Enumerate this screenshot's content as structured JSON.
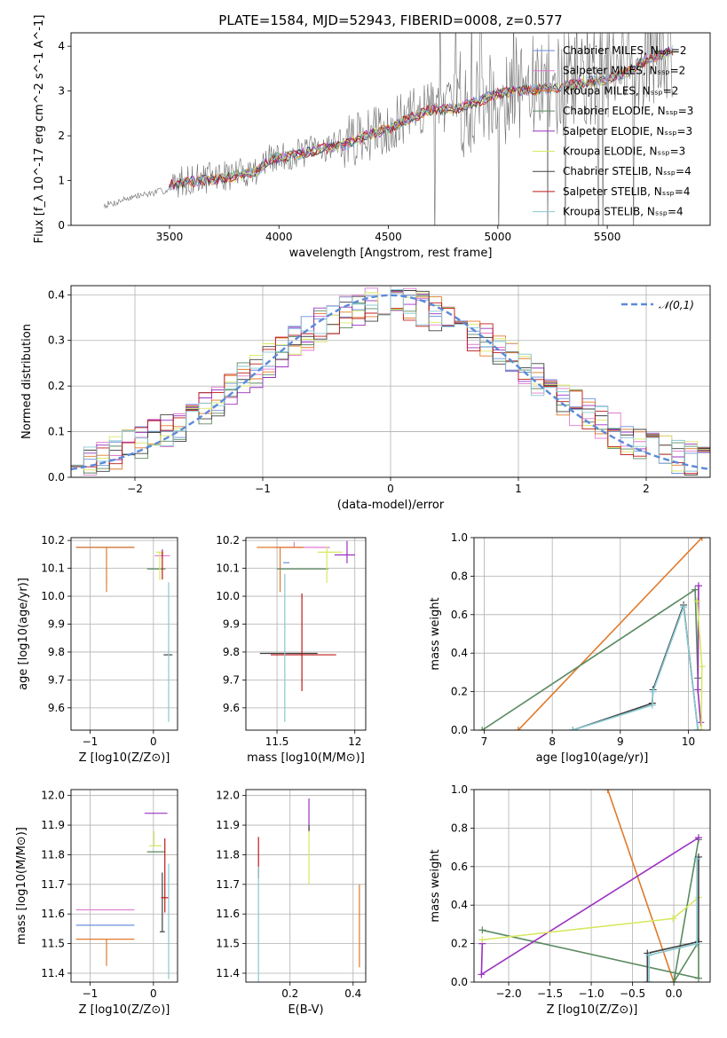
{
  "figure": {
    "title": "PLATE=1584, MJD=52943, FIBERID=0008, z=0.577"
  },
  "series_styles": [
    {
      "name": "Chabrier MILES, N_SSP=2",
      "color": "#6a8fd8"
    },
    {
      "name": "Salpeter MILES, N_SSP=2",
      "color": "#e07ad0"
    },
    {
      "name": "Kroupa MILES, N_SSP=2",
      "color": "#e07a2a"
    },
    {
      "name": "Chabrier ELODIE, N_SSP=3",
      "color": "#5a8a60"
    },
    {
      "name": "Salpeter ELODIE, N_SSP=3",
      "color": "#9b30c0"
    },
    {
      "name": "Kroupa ELODIE, N_SSP=3",
      "color": "#d8e860"
    },
    {
      "name": "Chabrier STELIB, N_SSP=4",
      "color": "#404040"
    },
    {
      "name": "Salpeter STELIB, N_SSP=4",
      "color": "#c01818"
    },
    {
      "name": "Kroupa STELIB, N_SSP=4",
      "color": "#88c8d0"
    }
  ],
  "chart_data": [
    {
      "id": "spectrum",
      "type": "line",
      "xlabel": "wavelength [Angstrom, rest frame]",
      "ylabel": "Flux [f_λ 10^-17 erg cm^-2 s^-1 A^-1]",
      "xlim": [
        3050,
        5970
      ],
      "ylim": [
        0,
        4.3
      ],
      "xticks": [
        3500,
        4000,
        4500,
        5000,
        5500
      ],
      "yticks": [
        0,
        1,
        2,
        3,
        4
      ],
      "legend_position": "top-right",
      "continuum_x": [
        3200,
        3250,
        3300,
        3400,
        3500,
        3550,
        3650,
        3750,
        3900,
        3950,
        4000,
        4100,
        4200,
        4300,
        4400,
        4500,
        4600,
        4700,
        4800,
        4900,
        5000,
        5100,
        5200,
        5300,
        5400,
        5500,
        5600,
        5700,
        5800
      ],
      "continuum_y": [
        0.45,
        0.5,
        0.6,
        0.7,
        0.8,
        1.0,
        1.05,
        1.1,
        1.25,
        1.45,
        1.5,
        1.6,
        1.75,
        1.85,
        2.0,
        2.2,
        2.45,
        2.7,
        2.65,
        2.8,
        2.95,
        3.05,
        3.05,
        3.15,
        3.3,
        3.3,
        3.5,
        3.85,
        3.95
      ],
      "model_x": [
        3500,
        3550,
        3650,
        3750,
        3900,
        3950,
        4000,
        4100,
        4200,
        4300,
        4400,
        4500,
        4600,
        4700,
        4800,
        4900,
        5000,
        5100,
        5200,
        5300,
        5400,
        5500,
        5600,
        5700,
        5800
      ],
      "model_y": [
        0.9,
        0.95,
        1.0,
        1.05,
        1.2,
        1.45,
        1.5,
        1.6,
        1.7,
        1.8,
        2.0,
        2.15,
        2.4,
        2.6,
        2.6,
        2.75,
        2.95,
        3.0,
        3.05,
        3.1,
        3.2,
        3.25,
        3.45,
        3.75,
        3.9
      ]
    },
    {
      "id": "residuals",
      "type": "step",
      "xlabel": "(data-model)/error",
      "ylabel": "Normed distribution",
      "xlim": [
        -2.5,
        2.5
      ],
      "ylim": [
        0,
        0.42
      ],
      "xticks": [
        -2,
        -1,
        0,
        1,
        2
      ],
      "yticks": [
        0.0,
        0.1,
        0.2,
        0.3,
        0.4
      ],
      "legend": "𝒩(0,1)",
      "legend_position": "top-right",
      "gaussian_color": "#5b8ad8"
    },
    {
      "id": "age_vs_Z",
      "type": "errorbar",
      "xlabel": "Z [log10(Z/Z⊙)]",
      "ylabel": "age  [log10(age/yr)]",
      "xlim": [
        -1.3,
        0.38
      ],
      "ylim": [
        9.52,
        10.21
      ],
      "xticks": [
        -1,
        0
      ],
      "yticks": [
        9.6,
        9.7,
        9.8,
        9.9,
        10.0,
        10.1,
        10.2
      ],
      "points": [
        {
          "s": 0,
          "x": -0.74,
          "y": 10.175,
          "xerr": [
            0.48,
            0.44
          ],
          "yerr": [
            0.0,
            0.0
          ]
        },
        {
          "s": 1,
          "x": 0.14,
          "y": 10.145,
          "xerr": [
            0.12,
            0.12
          ],
          "yerr": [
            0.01,
            0.02
          ]
        },
        {
          "s": 2,
          "x": -0.74,
          "y": 10.175,
          "xerr": [
            0.48,
            0.44
          ],
          "yerr": [
            0.16,
            0.0
          ]
        },
        {
          "s": 3,
          "x": 0.04,
          "y": 10.098,
          "xerr": [
            0.14,
            0.15
          ],
          "yerr": [
            0.0,
            0.0
          ]
        },
        {
          "s": 4,
          "x": 0.14,
          "y": 10.148,
          "xerr": [
            0.0,
            0.0
          ],
          "yerr": [
            0.0,
            0.02
          ]
        },
        {
          "s": 5,
          "x": 0.1,
          "y": 10.158,
          "xerr": [
            0.06,
            0.06
          ],
          "yerr": [
            0.1,
            0.0
          ]
        },
        {
          "s": 6,
          "x": 0.18,
          "y": 9.79,
          "xerr": [
            0.02,
            0.12
          ],
          "yerr": [
            0.0,
            0.0
          ]
        },
        {
          "s": 7,
          "x": 0.14,
          "y": 10.11,
          "xerr": [
            0.0,
            0.0
          ],
          "yerr": [
            0.05,
            0.05
          ]
        },
        {
          "s": 8,
          "x": 0.24,
          "y": 9.8,
          "xerr": [
            0.0,
            0.0
          ],
          "yerr": [
            0.25,
            0.25
          ]
        }
      ]
    },
    {
      "id": "age_vs_mass",
      "type": "errorbar",
      "xlabel": "mass [log10(M/M⊙)]",
      "ylabel": "",
      "xlim": [
        11.3,
        12.07
      ],
      "ylim": [
        9.52,
        10.21
      ],
      "xticks": [
        11.5,
        12.0
      ],
      "yticks": [
        9.6,
        9.7,
        9.8,
        9.9,
        10.0,
        10.1,
        10.2
      ],
      "points": [
        {
          "s": 0,
          "x": 11.56,
          "y": 10.12,
          "xerr": [
            0.02,
            0.02
          ],
          "yerr": [
            0.0,
            0.0
          ]
        },
        {
          "s": 1,
          "x": 11.61,
          "y": 10.175,
          "xerr": [
            0.12,
            0.23
          ],
          "yerr": [
            0.0,
            0.02
          ]
        },
        {
          "s": 2,
          "x": 11.52,
          "y": 10.175,
          "xerr": [
            0.15,
            0.15
          ],
          "yerr": [
            0.16,
            0.0
          ]
        },
        {
          "s": 3,
          "x": 11.65,
          "y": 10.098,
          "xerr": [
            0.15,
            0.18
          ],
          "yerr": [
            0.0,
            0.0
          ]
        },
        {
          "s": 4,
          "x": 11.95,
          "y": 10.148,
          "xerr": [
            0.08,
            0.05
          ],
          "yerr": [
            0.03,
            0.05
          ]
        },
        {
          "s": 5,
          "x": 11.82,
          "y": 10.158,
          "xerr": [
            0.06,
            0.1
          ],
          "yerr": [
            0.11,
            0.02
          ]
        },
        {
          "s": 6,
          "x": 11.56,
          "y": 9.795,
          "xerr": [
            0.17,
            0.2
          ],
          "yerr": [
            0.0,
            0.0
          ]
        },
        {
          "s": 7,
          "x": 11.66,
          "y": 9.79,
          "xerr": [
            0.2,
            0.22
          ],
          "yerr": [
            0.13,
            0.22
          ]
        },
        {
          "s": 8,
          "x": 11.55,
          "y": 9.8,
          "xerr": [
            0.0,
            0.0
          ],
          "yerr": [
            0.25,
            0.28
          ]
        }
      ]
    },
    {
      "id": "weight_vs_age",
      "type": "line",
      "xlabel": "age  [log10(age/yr)]",
      "ylabel": "mass weight",
      "xlim": [
        6.85,
        10.32
      ],
      "ylim": [
        0,
        1.0
      ],
      "xticks": [
        7,
        8,
        9,
        10
      ],
      "yticks": [
        0.0,
        0.2,
        0.4,
        0.6,
        0.8,
        1.0
      ],
      "series": [
        {
          "s": 2,
          "x": [
            7.5,
            10.2
          ],
          "y": [
            0.0,
            1.0
          ]
        },
        {
          "s": 3,
          "x": [
            6.97,
            10.1,
            10.14
          ],
          "y": [
            0.0,
            0.73,
            0.27
          ]
        },
        {
          "s": 4,
          "x": [
            10.15,
            10.14,
            10.18
          ],
          "y": [
            0.75,
            0.21,
            0.04
          ]
        },
        {
          "s": 5,
          "x": [
            10.13,
            10.2,
            10.19
          ],
          "y": [
            0.67,
            0.33,
            0.0
          ]
        },
        {
          "s": 6,
          "x": [
            8.3,
            9.47,
            9.48,
            9.93,
            10.14
          ],
          "y": [
            0.0,
            0.14,
            0.21,
            0.65,
            0.0
          ]
        },
        {
          "s": 8,
          "x": [
            8.3,
            9.47,
            9.48,
            9.93,
            10.14
          ],
          "y": [
            0.0,
            0.13,
            0.2,
            0.64,
            0.0
          ]
        }
      ]
    },
    {
      "id": "mass_vs_Z",
      "type": "errorbar",
      "xlabel": "Z [log10(Z/Z⊙)]",
      "ylabel": "mass [log10(M/M⊙)]",
      "xlim": [
        -1.3,
        0.38
      ],
      "ylim": [
        11.37,
        12.02
      ],
      "xticks": [
        -1,
        0
      ],
      "yticks": [
        11.4,
        11.5,
        11.6,
        11.7,
        11.8,
        11.9,
        12.0
      ],
      "points": [
        {
          "s": 0,
          "x": -0.74,
          "y": 11.562,
          "xerr": [
            0.48,
            0.44
          ],
          "yerr": [
            0.0,
            0.0
          ]
        },
        {
          "s": 1,
          "x": -0.74,
          "y": 11.614,
          "xerr": [
            0.48,
            0.44
          ],
          "yerr": [
            0.0,
            0.0
          ]
        },
        {
          "s": 2,
          "x": -0.74,
          "y": 11.515,
          "xerr": [
            0.48,
            0.44
          ],
          "yerr": [
            0.09,
            0.0
          ]
        },
        {
          "s": 3,
          "x": 0.04,
          "y": 11.81,
          "xerr": [
            0.14,
            0.15
          ],
          "yerr": [
            0.0,
            0.0
          ]
        },
        {
          "s": 4,
          "x": 0.02,
          "y": 11.94,
          "xerr": [
            0.16,
            0.2
          ],
          "yerr": [
            0.0,
            0.0
          ]
        },
        {
          "s": 5,
          "x": 0.01,
          "y": 11.83,
          "xerr": [
            0.08,
            0.12
          ],
          "yerr": [
            0.0,
            0.05
          ]
        },
        {
          "s": 6,
          "x": 0.14,
          "y": 11.54,
          "xerr": [
            0.04,
            0.04
          ],
          "yerr": [
            0.0,
            0.2
          ]
        },
        {
          "s": 7,
          "x": 0.18,
          "y": 11.655,
          "xerr": [
            0.06,
            0.06
          ],
          "yerr": [
            0.05,
            0.2
          ]
        },
        {
          "s": 8,
          "x": 0.24,
          "y": 11.57,
          "xerr": [
            0.0,
            0.0
          ],
          "yerr": [
            0.19,
            0.2
          ]
        }
      ]
    },
    {
      "id": "mass_vs_ebv",
      "type": "errorbar",
      "xlabel": "E(B-V)",
      "ylabel": "",
      "xlim": [
        0.06,
        0.44
      ],
      "ylim": [
        11.37,
        12.02
      ],
      "xticks": [
        0.2,
        0.4
      ],
      "yticks": [
        11.4,
        11.5,
        11.6,
        11.7,
        11.8,
        11.9,
        12.0
      ],
      "points": [
        {
          "s": 0,
          "x": 0.1,
          "y": 11.56,
          "xerr": [
            0.0,
            0.0
          ],
          "yerr": [
            0.0,
            0.0
          ]
        },
        {
          "s": 1,
          "x": 0.1,
          "y": 11.6,
          "xerr": [
            0.0,
            0.0
          ],
          "yerr": [
            0.0,
            0.0
          ]
        },
        {
          "s": 2,
          "x": 0.42,
          "y": 11.55,
          "xerr": [
            0.0,
            0.0
          ],
          "yerr": [
            0.13,
            0.15
          ]
        },
        {
          "s": 3,
          "x": 0.26,
          "y": 11.81,
          "xerr": [
            0.0,
            0.0
          ],
          "yerr": [
            0.0,
            0.0
          ]
        },
        {
          "s": 4,
          "x": 0.26,
          "y": 11.9,
          "xerr": [
            0.0,
            0.0
          ],
          "yerr": [
            0.02,
            0.09
          ]
        },
        {
          "s": 5,
          "x": 0.26,
          "y": 11.82,
          "xerr": [
            0.0,
            0.0
          ],
          "yerr": [
            0.12,
            0.06
          ]
        },
        {
          "s": 6,
          "x": 0.26,
          "y": 11.88,
          "xerr": [
            0.0,
            0.0
          ],
          "yerr": [
            0.0,
            0.02
          ]
        },
        {
          "s": 7,
          "x": 0.1,
          "y": 11.75,
          "xerr": [
            0.0,
            0.0
          ],
          "yerr": [
            0.03,
            0.11
          ]
        },
        {
          "s": 8,
          "x": 0.1,
          "y": 11.56,
          "xerr": [
            0.0,
            0.0
          ],
          "yerr": [
            0.19,
            0.2
          ]
        }
      ]
    },
    {
      "id": "weight_vs_Z",
      "type": "line",
      "xlabel": "Z [log10(Z/Z⊙)]",
      "ylabel": "mass weight",
      "xlim": [
        -2.42,
        0.44
      ],
      "ylim": [
        0,
        1.0
      ],
      "xticks": [
        -2.0,
        -1.5,
        -1.0,
        -0.5,
        0.0
      ],
      "yticks": [
        0.0,
        0.2,
        0.4,
        0.6,
        0.8,
        1.0
      ],
      "series": [
        {
          "s": 2,
          "x": [
            -0.8,
            0.0
          ],
          "y": [
            1.0,
            0.0
          ]
        },
        {
          "s": 3,
          "x": [
            -2.32,
            0.3,
            0.3,
            0.0,
            0.3
          ],
          "y": [
            0.27,
            0.02,
            0.21,
            0.0,
            0.74
          ]
        },
        {
          "s": 4,
          "x": [
            -2.32,
            -2.33,
            0.3
          ],
          "y": [
            0.2,
            0.04,
            0.75
          ]
        },
        {
          "s": 5,
          "x": [
            -2.32,
            -0.01,
            0.3
          ],
          "y": [
            0.22,
            0.33,
            0.44
          ]
        },
        {
          "s": 6,
          "x": [
            -0.32,
            -0.32,
            0.3,
            0.3
          ],
          "y": [
            0.0,
            0.15,
            0.21,
            0.65
          ]
        },
        {
          "s": 8,
          "x": [
            -0.3,
            -0.3,
            0.28,
            0.28
          ],
          "y": [
            0.0,
            0.14,
            0.2,
            0.64
          ]
        }
      ]
    }
  ]
}
